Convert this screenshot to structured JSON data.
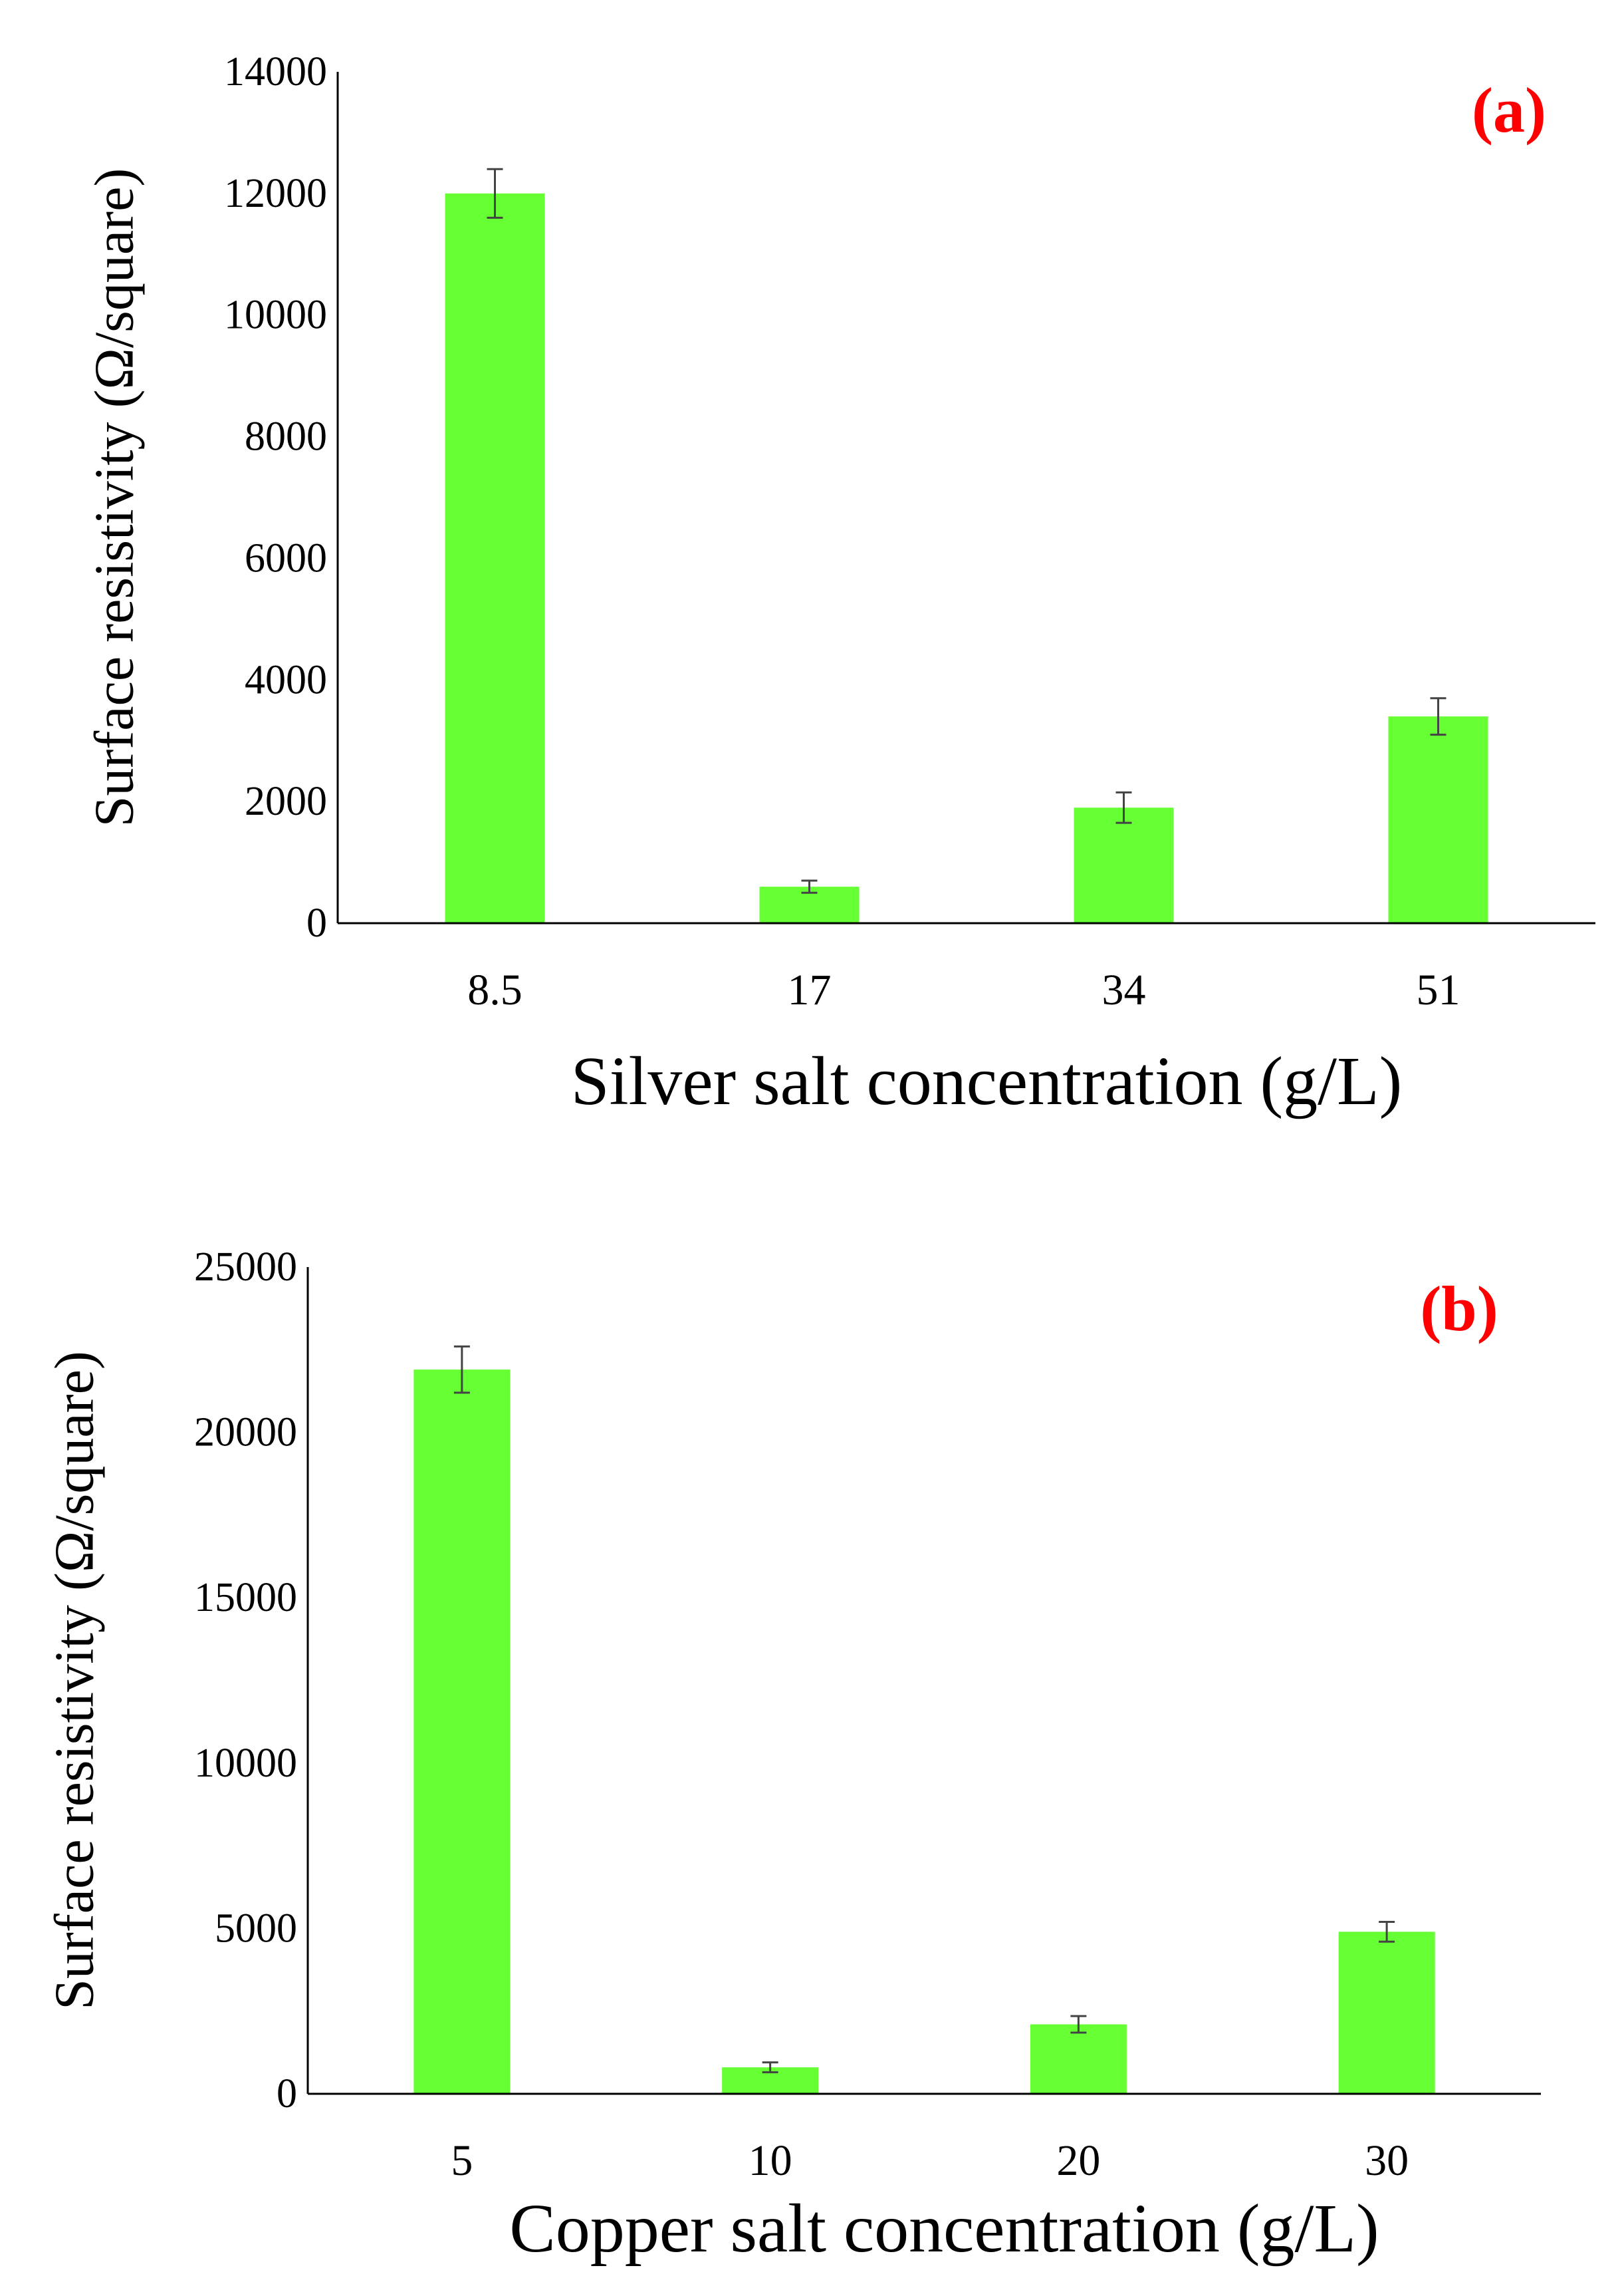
{
  "colors": {
    "bar": "#66ff33",
    "panel_tag": "#ff0000",
    "axis": "#000000",
    "error_bar": "#444444"
  },
  "chart_data": [
    {
      "type": "bar",
      "panel_label": "(a)",
      "categories": [
        "8.5",
        "17",
        "34",
        "51"
      ],
      "values": [
        12000,
        600,
        1900,
        3400
      ],
      "error": [
        400,
        100,
        250,
        300
      ],
      "xlabel": "Silver salt concentration (g/L)",
      "ylabel": "Surface resistivity (Ω/square)",
      "ylim": [
        0,
        14000
      ],
      "yticks": [
        "0",
        "2000",
        "4000",
        "6000",
        "8000",
        "10000",
        "12000",
        "14000"
      ],
      "grid": false,
      "legend": "none"
    },
    {
      "type": "bar",
      "panel_label": "(b)",
      "categories": [
        "5",
        "10",
        "20",
        "30"
      ],
      "values": [
        21900,
        800,
        2100,
        4900
      ],
      "error": [
        700,
        150,
        250,
        300
      ],
      "xlabel": "Copper salt concentration (g/L)",
      "ylabel": "Surface resistivity (Ω/square)",
      "ylim": [
        0,
        25000
      ],
      "yticks": [
        "0",
        "5000",
        "10000",
        "15000",
        "20000",
        "25000"
      ],
      "grid": false,
      "legend": "none"
    }
  ]
}
